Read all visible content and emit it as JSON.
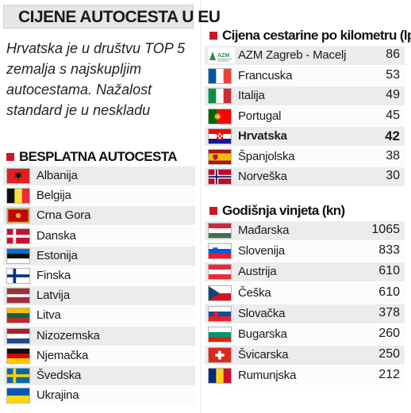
{
  "title": "CIJENE AUTOCESTA U EU",
  "intro": "Hrvatska je u društvu TOP 5 zemalja s najskupljim autocestama. Nažalost standard je u neskladu",
  "free_section": {
    "heading": "BESPLATNA AUTOCESTA",
    "countries": [
      {
        "name": "Albanija",
        "flag": "albania-flag"
      },
      {
        "name": "Belgija",
        "flag": "belgium-flag"
      },
      {
        "name": "Crna Gora",
        "flag": "montenegro-flag"
      },
      {
        "name": "Danska",
        "flag": "denmark-flag"
      },
      {
        "name": "Estonija",
        "flag": "estonia-flag"
      },
      {
        "name": "Finska",
        "flag": "finland-flag"
      },
      {
        "name": "Latvija",
        "flag": "latvia-flag"
      },
      {
        "name": "Litva",
        "flag": "lithuania-flag"
      },
      {
        "name": "Nizozemska",
        "flag": "netherlands-flag"
      },
      {
        "name": "Njemačka",
        "flag": "germany-flag"
      },
      {
        "name": "Švedska",
        "flag": "sweden-flag"
      },
      {
        "name": "Ukrajina",
        "flag": "ukraine-flag"
      }
    ]
  },
  "toll_section": {
    "heading": "Cijena cestarine po kilometru (lp)",
    "rows": [
      {
        "name": "AZM Zagreb - Macelj",
        "value": "86",
        "flag": "azm-logo",
        "logo_text": "AZM"
      },
      {
        "name": "Francuska",
        "value": "53",
        "flag": "france-flag"
      },
      {
        "name": "Italija",
        "value": "49",
        "flag": "italy-flag"
      },
      {
        "name": "Portugal",
        "value": "45",
        "flag": "portugal-flag"
      },
      {
        "name": "Hrvatska",
        "value": "42",
        "flag": "croatia-flag",
        "highlight": true
      },
      {
        "name": "Španjolska",
        "value": "38",
        "flag": "spain-flag"
      },
      {
        "name": "Norveška",
        "value": "30",
        "flag": "norway-flag"
      }
    ]
  },
  "vignette_section": {
    "heading": "Godišnja vinjeta (kn)",
    "rows": [
      {
        "name": "Mađarska",
        "value": "1065",
        "flag": "hungary-flag"
      },
      {
        "name": "Slovenija",
        "value": "833",
        "flag": "slovenia-flag"
      },
      {
        "name": "Austrija",
        "value": "610",
        "flag": "austria-flag"
      },
      {
        "name": "Češka",
        "value": "610",
        "flag": "czech-flag"
      },
      {
        "name": "Slovačka",
        "value": "378",
        "flag": "slovakia-flag"
      },
      {
        "name": "Bugarska",
        "value": "260",
        "flag": "bulgaria-flag"
      },
      {
        "name": "Švicarska",
        "value": "250",
        "flag": "switzerland-flag"
      },
      {
        "name": "Rumunjska",
        "value": "212",
        "flag": "romania-flag"
      }
    ]
  },
  "colors": {
    "accent_red": "#d0142a",
    "row_odd": "#ececec",
    "row_even": "#fbfbfb"
  }
}
